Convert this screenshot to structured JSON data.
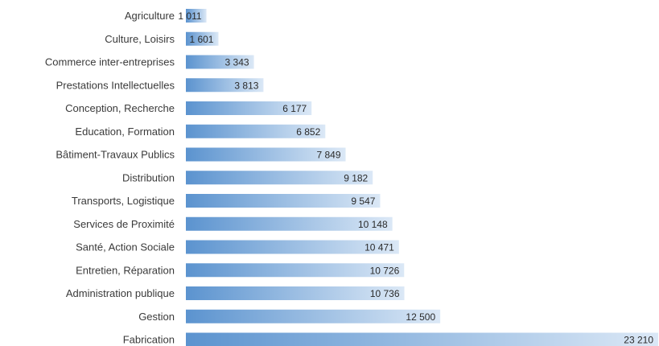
{
  "chart_data": {
    "type": "bar",
    "orientation": "horizontal",
    "title": "",
    "xlabel": "",
    "ylabel": "",
    "categories": [
      "Agriculture",
      "Culture, Loisirs",
      "Commerce inter-entreprises",
      "Prestations Intellectuelles",
      "Conception, Recherche",
      "Education, Formation",
      "Bâtiment-Travaux Publics",
      "Distribution",
      "Transports, Logistique",
      "Services de Proximité",
      "Santé, Action Sociale",
      "Entretien, Réparation",
      "Administration publique",
      "Gestion",
      "Fabrication"
    ],
    "values": [
      1011,
      1601,
      3343,
      3813,
      6177,
      6852,
      7849,
      9182,
      9547,
      10148,
      10471,
      10726,
      10736,
      12500,
      23210
    ],
    "value_labels": [
      "1 011",
      "1 601",
      "3 343",
      "3 813",
      "6 177",
      "6 852",
      "7 849",
      "9 182",
      "9 547",
      "10 148",
      "10 471",
      "10 726",
      "10 736",
      "12 500",
      "23 210"
    ],
    "xlim": [
      0,
      23210
    ],
    "grid": false,
    "legend": "none",
    "colors": {
      "bar_start": "#5b93cf",
      "bar_end": "#dbe8f6"
    }
  }
}
